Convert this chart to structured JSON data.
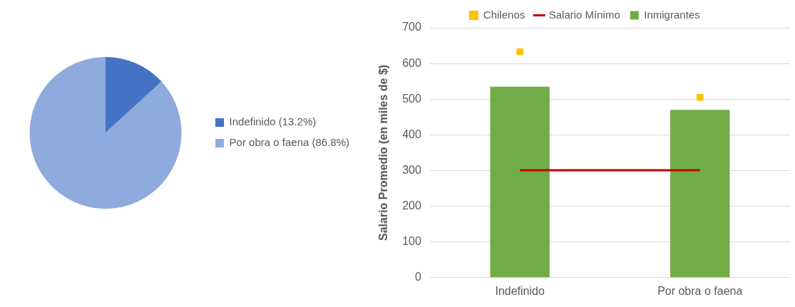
{
  "chart_data": [
    {
      "type": "pie",
      "categories": [
        "Indefinido (13.2%)",
        "Por obra o faena (86.8%)"
      ],
      "values": [
        13.2,
        86.8
      ],
      "colors": [
        "#4472c4",
        "#8faadc"
      ],
      "legend": "right"
    },
    {
      "type": "bar",
      "categories": [
        "Indefinido",
        "Por obra o faena"
      ],
      "ylabel": "Salario Promedio (en miles de $)",
      "ylim": [
        0,
        700
      ],
      "yticks": [
        0,
        100,
        200,
        300,
        400,
        500,
        600,
        700
      ],
      "grid": "y",
      "legend": "top",
      "series": [
        {
          "name": "Inmigrantes",
          "type": "bar",
          "color": "#70ad47",
          "values": [
            535,
            470
          ]
        },
        {
          "name": "Chilenos",
          "type": "scatter",
          "color": "#ffc000",
          "marker": "square",
          "x": [
            "Indefinido",
            "Por obra o faena"
          ],
          "values": [
            633,
            505
          ]
        },
        {
          "name": "Salario Mínimo",
          "type": "line",
          "color": "#c00000",
          "marker": "none",
          "values": [
            301,
            301
          ]
        }
      ]
    }
  ]
}
